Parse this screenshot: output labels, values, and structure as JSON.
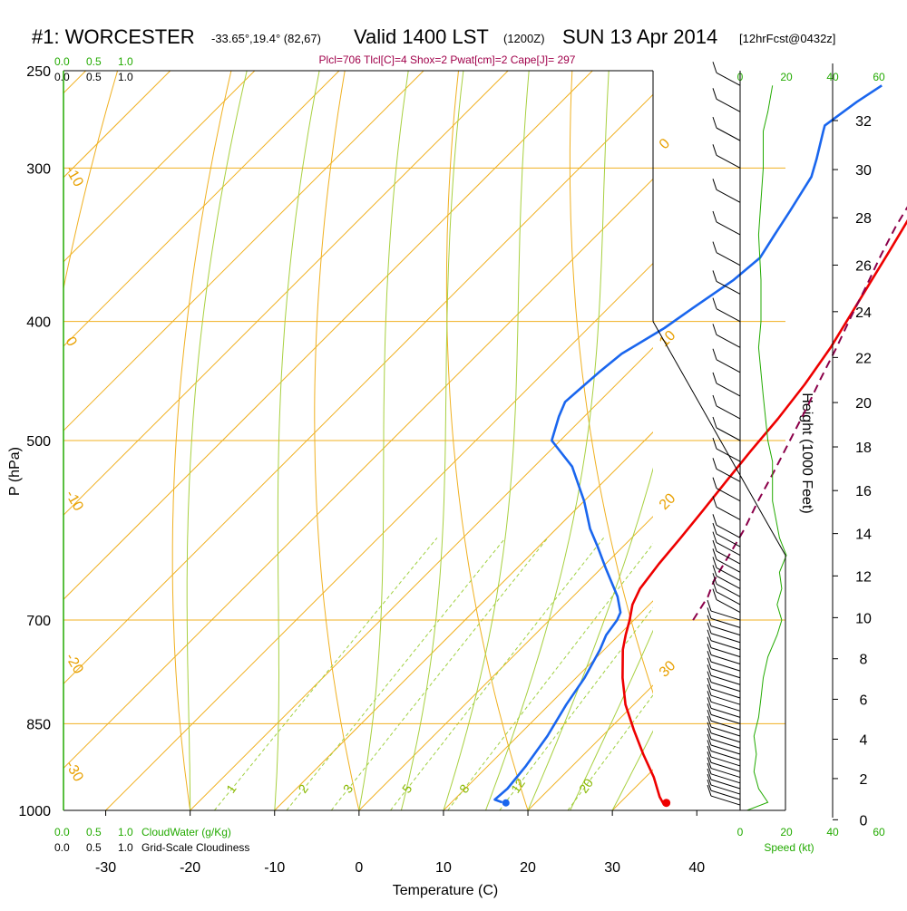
{
  "title": {
    "station": "#1: WORCESTER",
    "coords": "-33.65°,19.4° (82,67)",
    "valid": "Valid 1400 LST",
    "utc": "(1200Z)",
    "date": "SUN 13 Apr 2014",
    "forecast": "[12hrFcst@0432z]"
  },
  "params_line": "Plcl=706 Tlcl[C]=4 Shox=2 Pwat[cm]=2 Cape[J]= 297",
  "legend": {
    "cloudwater_label": "CloudWater (g/Kg)",
    "cloudiness_label": "Grid-Scale Cloudiness",
    "scale_green": [
      "0.0",
      "0.5",
      "1.0"
    ],
    "scale_black": [
      "0.0",
      "0.5",
      "1.0"
    ],
    "speed_label": "Speed (kt)",
    "speed_ticks": [
      "0",
      "20",
      "40",
      "60"
    ]
  },
  "chart_data": {
    "type": "line",
    "title": "",
    "xlabel": "Temperature (C)",
    "ylabel": "P (hPa)",
    "y2label": "Height (1000 Feet)",
    "xlim": [
      -35,
      36
    ],
    "ylim_hpa": [
      1000,
      250
    ],
    "y_log_scale": true,
    "x_ticks": [
      -30,
      -20,
      -10,
      0,
      10,
      20,
      30,
      40
    ],
    "y_ticks": [
      250,
      300,
      400,
      500,
      700,
      850,
      1000
    ],
    "isobars": [
      300,
      400,
      500,
      700,
      850
    ],
    "height_ticks_kft": [
      0,
      2,
      4,
      6,
      8,
      10,
      12,
      14,
      16,
      18,
      20,
      22,
      24,
      26,
      28,
      30,
      32
    ],
    "isotherm_labels": [
      "-10",
      "0",
      "10",
      "20",
      "30"
    ],
    "isotherm_labels_left": [
      "-10",
      "0",
      "-10",
      "-20",
      "-30"
    ],
    "mixing_ratio_labels": [
      "1",
      "2",
      "3",
      "5",
      "8",
      "12",
      "20"
    ],
    "series": [
      {
        "name": "Temperature",
        "color": "#ee0000",
        "points": [
          [
            35.5,
            990
          ],
          [
            34,
            975
          ],
          [
            31,
            940
          ],
          [
            27,
            900
          ],
          [
            23,
            860
          ],
          [
            19,
            820
          ],
          [
            15.5,
            780
          ],
          [
            12.2,
            740
          ],
          [
            10.8,
            720
          ],
          [
            9.5,
            700
          ],
          [
            8,
            680
          ],
          [
            7,
            660
          ],
          [
            6.3,
            630
          ],
          [
            5.8,
            600
          ],
          [
            5.2,
            570
          ],
          [
            4.5,
            540
          ],
          [
            3.8,
            510
          ],
          [
            3.2,
            480
          ],
          [
            2.3,
            450
          ],
          [
            1,
            420
          ],
          [
            -0.5,
            395
          ],
          [
            -2,
            372
          ],
          [
            -3.5,
            350
          ],
          [
            -5,
            330
          ],
          [
            -6.3,
            312
          ],
          [
            -7,
            302
          ],
          [
            -7.3,
            290
          ],
          [
            -7.6,
            280
          ],
          [
            -8.4,
            265
          ],
          [
            -8.8,
            257
          ]
        ]
      },
      {
        "name": "Dewpoint",
        "color": "#1a66ee",
        "points": [
          [
            16,
            985
          ],
          [
            14.8,
            980
          ],
          [
            15,
            960
          ],
          [
            14.5,
            920
          ],
          [
            13.5,
            870
          ],
          [
            12,
            820
          ],
          [
            11,
            780
          ],
          [
            9.5,
            740
          ],
          [
            8.5,
            720
          ],
          [
            8,
            700
          ],
          [
            7.5,
            690
          ],
          [
            5.3,
            670
          ],
          [
            0.5,
            635
          ],
          [
            -3,
            610
          ],
          [
            -6,
            590
          ],
          [
            -10,
            560
          ],
          [
            -15.5,
            525
          ],
          [
            -21,
            500
          ],
          [
            -23,
            478
          ],
          [
            -24,
            465
          ],
          [
            -23.5,
            440
          ],
          [
            -23,
            425
          ],
          [
            -21,
            405
          ],
          [
            -20,
            390
          ],
          [
            -18.5,
            370
          ],
          [
            -18,
            355
          ],
          [
            -19,
            340
          ],
          [
            -20,
            325
          ],
          [
            -21.5,
            305
          ],
          [
            -23,
            295
          ],
          [
            -25.5,
            280
          ],
          [
            -26,
            277
          ],
          [
            -25,
            265
          ],
          [
            -24,
            257
          ]
        ]
      },
      {
        "name": "Parcel",
        "color": "#8b004a",
        "dashed": true,
        "points": [
          [
            17,
            700
          ],
          [
            16,
            670
          ],
          [
            14.8,
            650
          ],
          [
            13.6,
            620
          ],
          [
            12.3,
            590
          ],
          [
            10.6,
            560
          ],
          [
            9,
            530
          ],
          [
            7.2,
            500
          ],
          [
            5.3,
            470
          ],
          [
            3.5,
            445
          ],
          [
            1.7,
            420
          ],
          [
            -0.1,
            398
          ],
          [
            -2,
            375
          ],
          [
            -4,
            353
          ],
          [
            -5.6,
            335
          ],
          [
            -7,
            317
          ],
          [
            -8,
            305
          ]
        ]
      }
    ],
    "surface_dewpoint": [
      16.5,
      986
    ],
    "surface_temperature": [
      35.5,
      986
    ],
    "wind_profile_kt": {
      "speed_axis": [
        0,
        20,
        40,
        60
      ],
      "speed_ticks_top": [
        "0",
        "20",
        "40",
        "60"
      ],
      "speeds": [
        [
          1000,
          3
        ],
        [
          985,
          12
        ],
        [
          960,
          8
        ],
        [
          930,
          6
        ],
        [
          900,
          7
        ],
        [
          870,
          6
        ],
        [
          840,
          8
        ],
        [
          810,
          9
        ],
        [
          780,
          10
        ],
        [
          750,
          12
        ],
        [
          720,
          16
        ],
        [
          700,
          18
        ],
        [
          680,
          16
        ],
        [
          660,
          18
        ],
        [
          640,
          17
        ],
        [
          620,
          20
        ],
        [
          600,
          17
        ],
        [
          560,
          14
        ],
        [
          520,
          14
        ],
        [
          500,
          12
        ],
        [
          460,
          10
        ],
        [
          420,
          8
        ],
        [
          400,
          9
        ],
        [
          370,
          9
        ],
        [
          340,
          8
        ],
        [
          300,
          10
        ],
        [
          280,
          10
        ],
        [
          270,
          12
        ],
        [
          257,
          14
        ]
      ],
      "barb_pressures": [
        990,
        980,
        970,
        960,
        950,
        940,
        930,
        920,
        910,
        900,
        890,
        880,
        870,
        860,
        850,
        840,
        830,
        820,
        810,
        800,
        790,
        780,
        770,
        760,
        750,
        740,
        730,
        720,
        710,
        700,
        690,
        680,
        670,
        660,
        650,
        640,
        630,
        620,
        610,
        600,
        580,
        560,
        540,
        520,
        500,
        480,
        460,
        440,
        420,
        400,
        380,
        360,
        340,
        320,
        300,
        285,
        270,
        257
      ],
      "direction": "west-northwest"
    }
  }
}
